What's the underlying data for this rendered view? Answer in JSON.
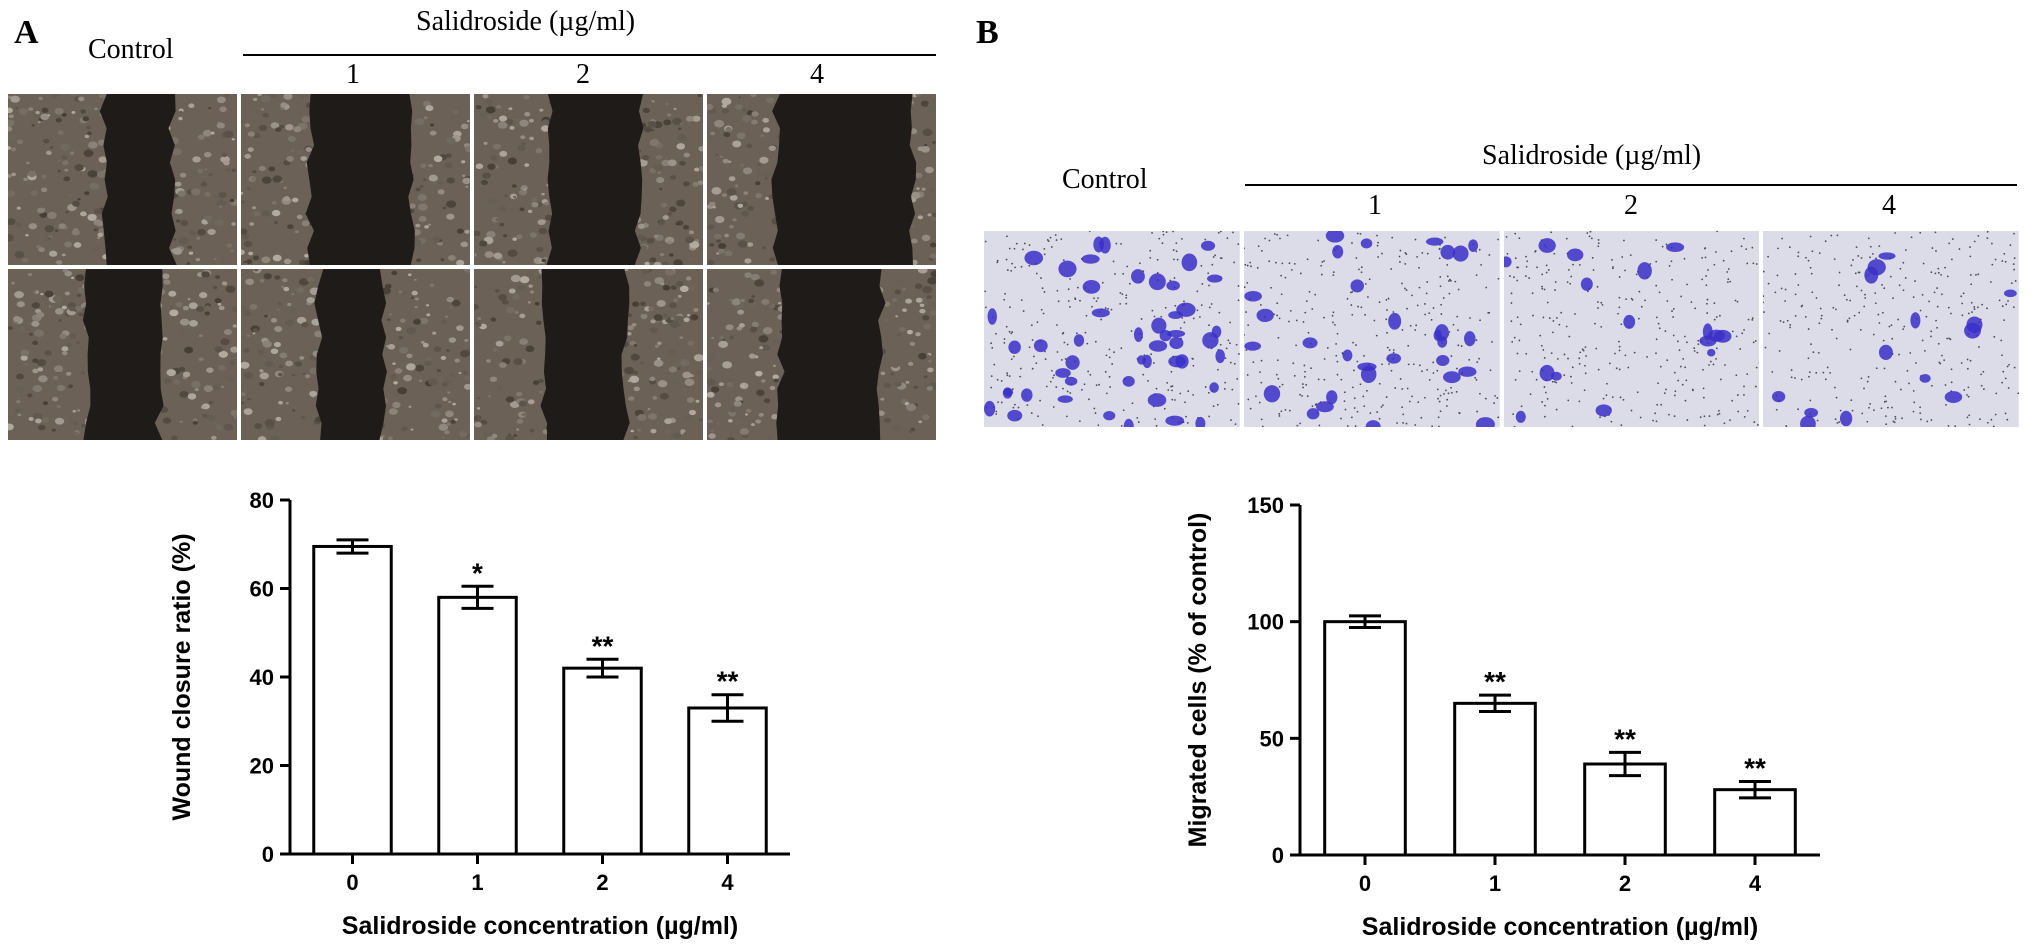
{
  "panel_a": {
    "letter": "A",
    "control_label": "Control",
    "treatment_label": "Salidroside (µg/ml)",
    "dose_labels": [
      "1",
      "2",
      "4"
    ]
  },
  "panel_b": {
    "letter": "B",
    "control_label": "Control",
    "treatment_label": "Salidroside (µg/ml)",
    "dose_labels": [
      "1",
      "2",
      "4"
    ]
  },
  "colors": {
    "wound_cells": "#6b6156",
    "wound_gap": "#1f1b18",
    "transwell_bg": "#dcdce8",
    "transwell_cell": "#3a2fc8"
  },
  "chart_data": [
    {
      "type": "bar",
      "categories": [
        "0",
        "1",
        "2",
        "4"
      ],
      "values": [
        69.5,
        58,
        42,
        33
      ],
      "errors": [
        1.5,
        2.5,
        2,
        3
      ],
      "significance": [
        "",
        "*",
        "**",
        "**"
      ],
      "xlabel": "Salidroside concentration (µg/ml)",
      "ylabel": "Wound closure ratio (%)",
      "ylim": [
        0,
        80
      ],
      "yticks": [
        0,
        20,
        40,
        60,
        80
      ],
      "grid": false
    },
    {
      "type": "bar",
      "categories": [
        "0",
        "1",
        "2",
        "4"
      ],
      "values": [
        100,
        65,
        39,
        28
      ],
      "errors": [
        2.5,
        3.5,
        5,
        3.5
      ],
      "significance": [
        "",
        "**",
        "**",
        "**"
      ],
      "xlabel": "Salidroside concentration (µg/ml)",
      "ylabel": "Migrated cells (% of control)",
      "ylim": [
        0,
        150
      ],
      "yticks": [
        0,
        50,
        100,
        150
      ],
      "grid": false
    }
  ]
}
